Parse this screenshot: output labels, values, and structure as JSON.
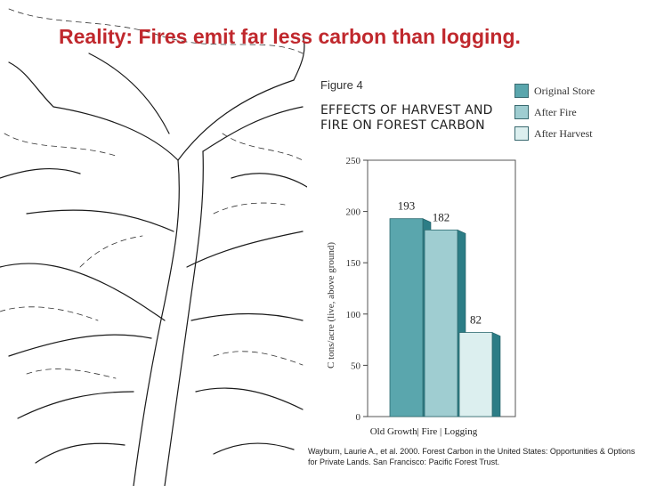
{
  "slide": {
    "title": "Reality: Fires emit far less carbon than logging.",
    "title_color": "#c0282d",
    "citation": "Wayburn, Laurie A., et al. 2000. Forest Carbon in the United States: Opportunities & Options for Private Lands. San Francisco: Pacific Forest Trust."
  },
  "figure": {
    "label": "Figure 4",
    "heading_line1": "EFFECTS OF HARVEST AND",
    "heading_line2": "FIRE  ON FOREST CARBON"
  },
  "chart_data": {
    "type": "bar",
    "categories": [
      "Old Growth",
      "Fire",
      "Logging"
    ],
    "category_label_text": "Old Growth|  Fire  | Logging",
    "values": [
      193,
      182,
      82
    ],
    "data_labels": [
      "193",
      "182",
      "82"
    ],
    "legend": [
      "Original Store",
      "After Fire",
      "After Harvest"
    ],
    "legend_placement": "top-right",
    "ylabel": "C tons/acre (live, above ground)",
    "ylim": [
      0,
      250
    ],
    "yticks": [
      0,
      50,
      100,
      150,
      200,
      250
    ],
    "grid": false,
    "bar_style": "3d",
    "colors": [
      "#5aa6ad",
      "#9fcdd1",
      "#dcefef"
    ],
    "side_color": "#2c7d86"
  }
}
